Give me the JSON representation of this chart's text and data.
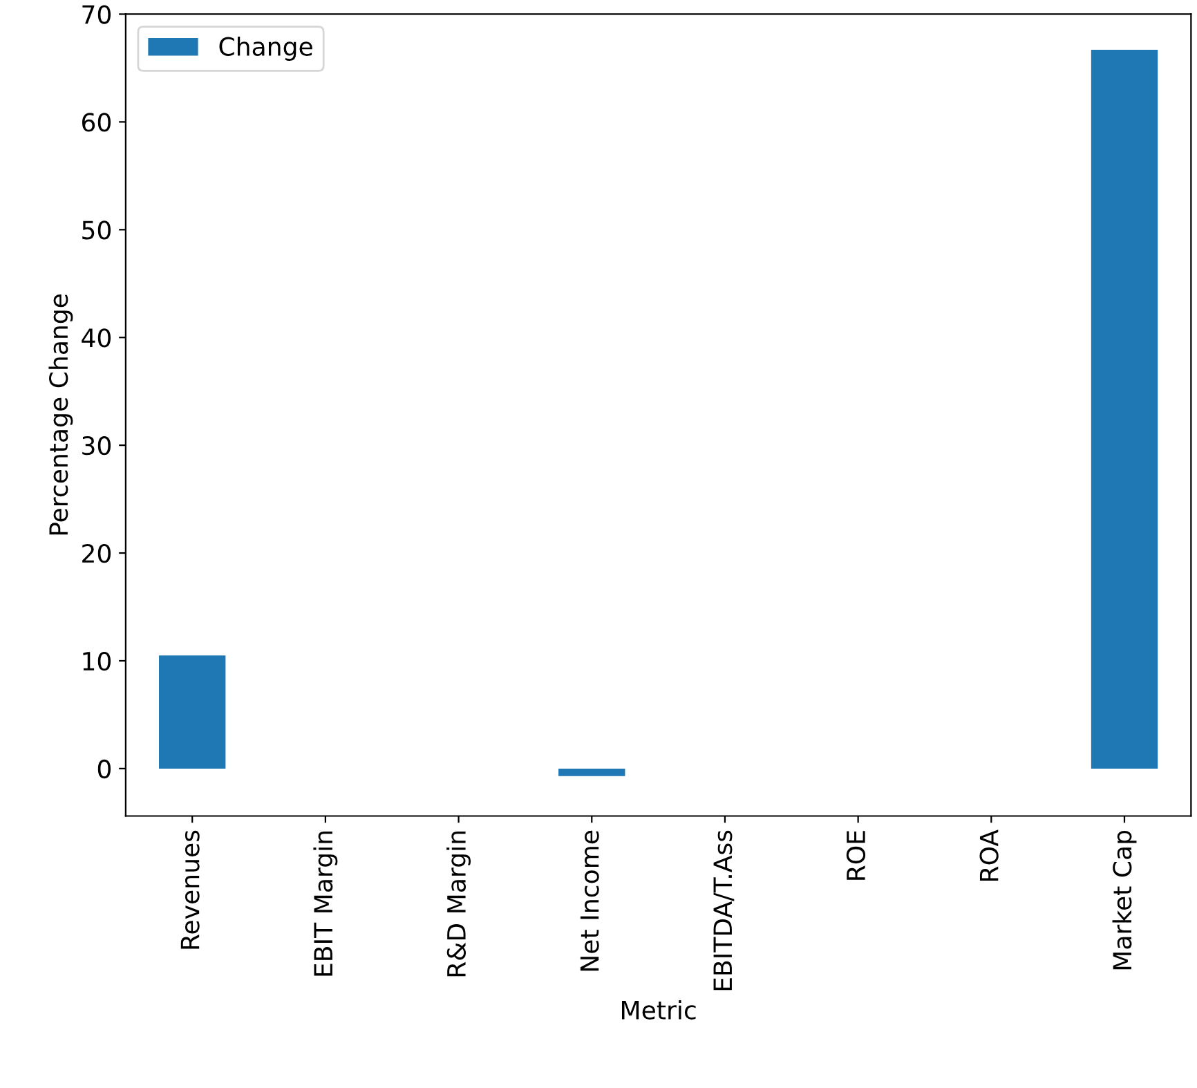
{
  "chart_data": {
    "type": "bar",
    "xlabel": "Metric",
    "ylabel": "Percentage Change",
    "categories": [
      "Revenues",
      "EBIT Margin",
      "R&D Margin",
      "Net Income",
      "EBITDA/T.Ass",
      "ROE",
      "ROA",
      "Market Cap"
    ],
    "series": [
      {
        "name": "Change",
        "color": "#1f77b4",
        "values": [
          10.5,
          0,
          0,
          -0.7,
          0,
          0,
          0,
          66.7
        ]
      }
    ],
    "ylim": [
      -4.4,
      70
    ],
    "yticks": [
      0,
      10,
      20,
      30,
      40,
      50,
      60,
      70
    ],
    "legend": "top left",
    "grid": false
  }
}
